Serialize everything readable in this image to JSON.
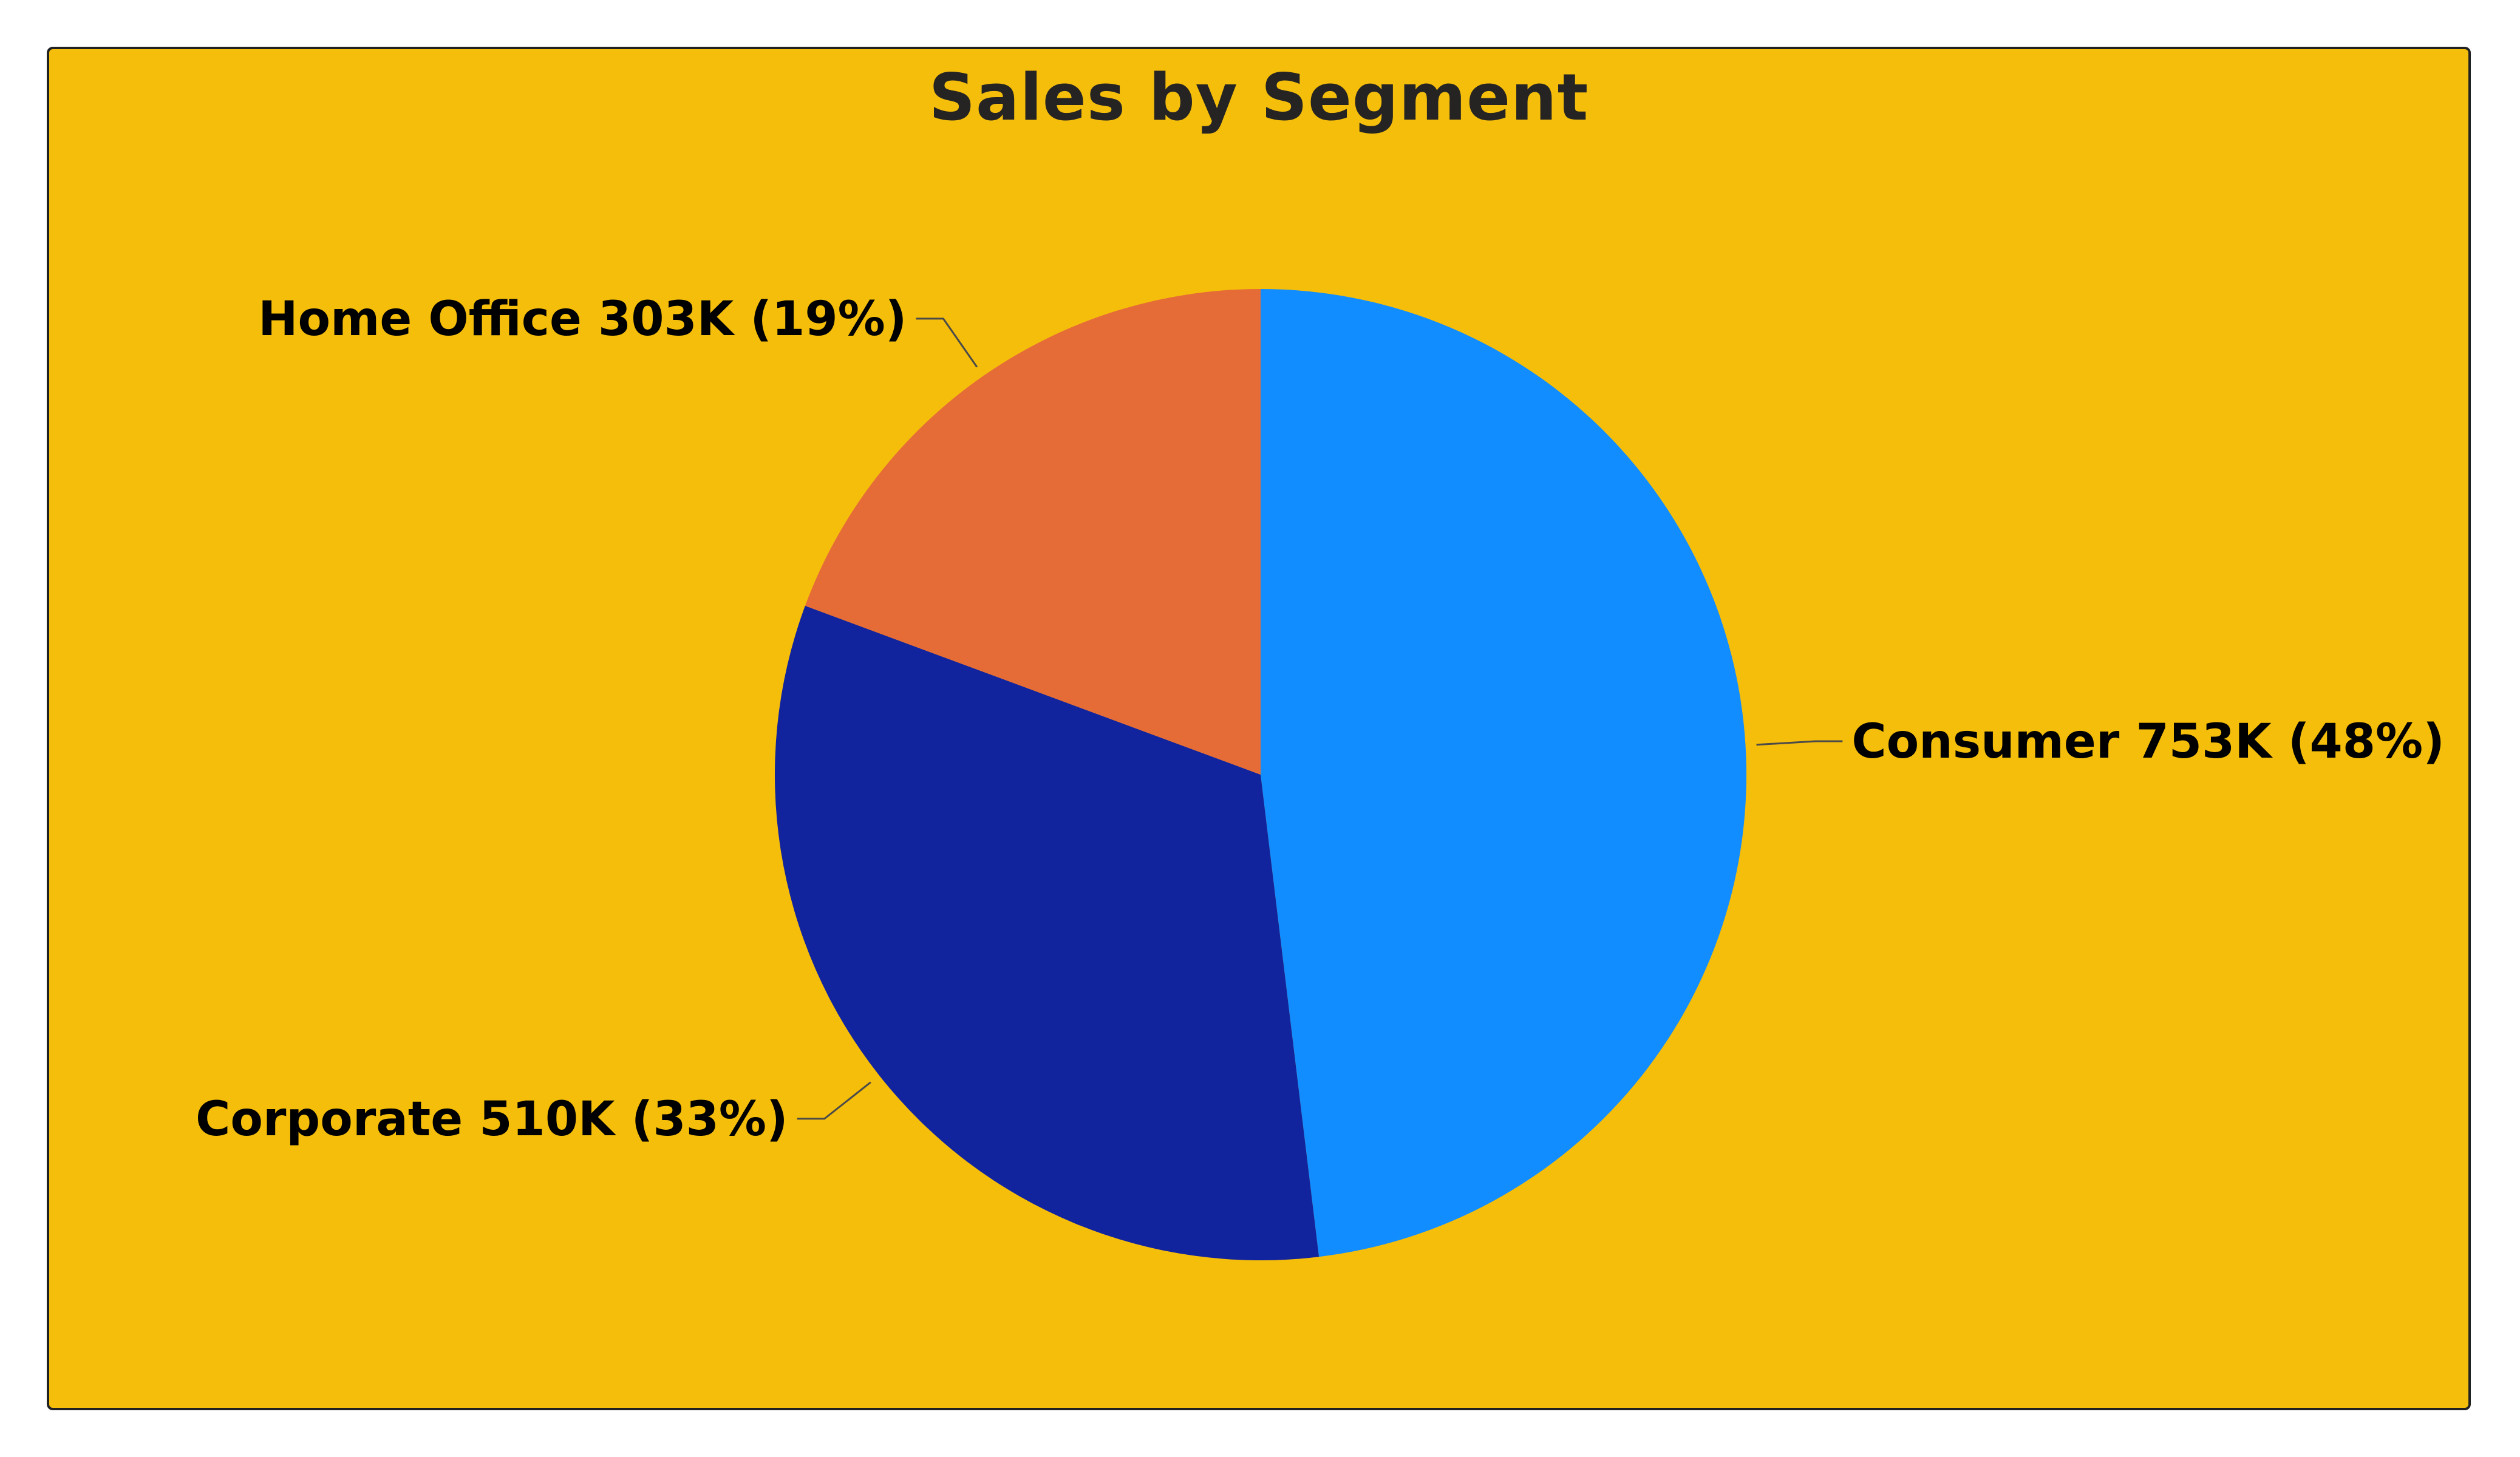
{
  "chart_data": {
    "type": "pie",
    "title": "Sales by Segment",
    "start_angle_deg": 0,
    "direction": "clockwise",
    "slices": [
      {
        "name": "Consumer",
        "value": 753,
        "percent": 48,
        "label": "Consumer 753K (48%)",
        "color": "#118DFF"
      },
      {
        "name": "Corporate",
        "value": 510,
        "percent": 33,
        "label": "Corporate 510K (33%)",
        "color": "#12239E"
      },
      {
        "name": "Home Office",
        "value": 303,
        "percent": 19,
        "label": "Home Office 303K (19%)",
        "color": "#E66C37"
      }
    ],
    "background_color": "#F5BE0B",
    "border_color": "#222222",
    "legend": "none",
    "label_placement": "outside with leader lines"
  }
}
